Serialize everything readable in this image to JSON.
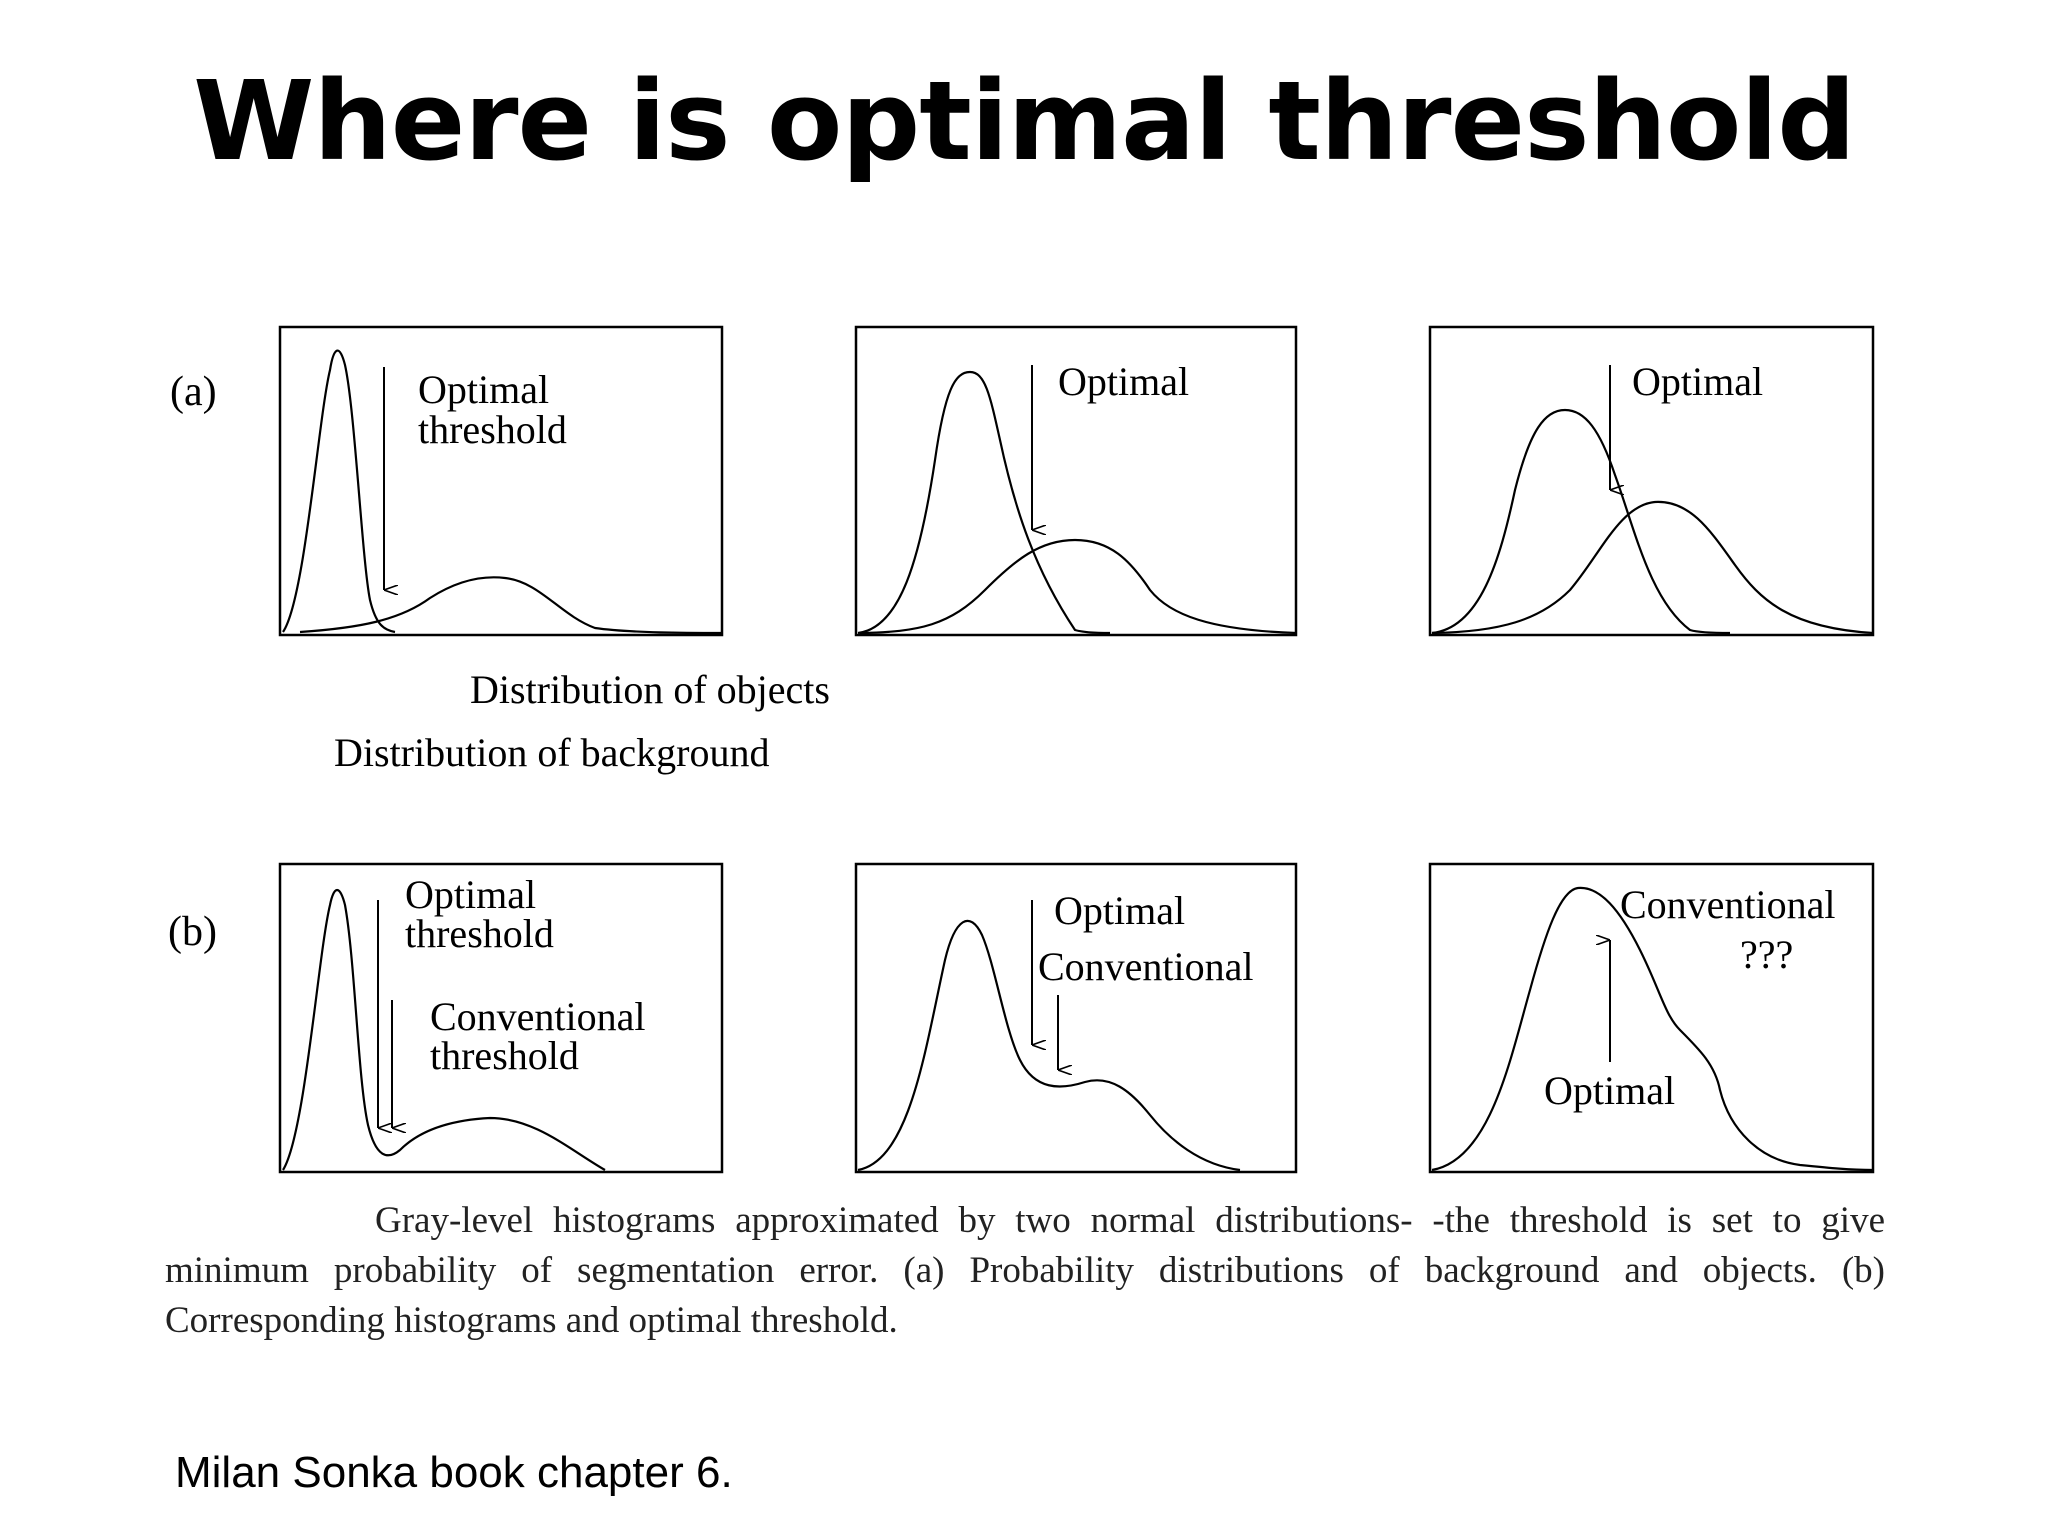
{
  "title": "Where is optimal threshold",
  "row_a": {
    "label": "(a)",
    "panel1": {
      "arrow_label_line1": "Optimal",
      "arrow_label_line2": "threshold"
    },
    "panel2": {
      "arrow_label": "Optimal"
    },
    "panel3": {
      "arrow_label": "Optimal"
    },
    "legend_objects": "Distribution of objects",
    "legend_background": "Distribution of background"
  },
  "row_b": {
    "label": "(b)",
    "panel1": {
      "optimal_line1": "Optimal",
      "optimal_line2": "threshold",
      "conventional_line1": "Conventional",
      "conventional_line2": "threshold"
    },
    "panel2": {
      "optimal_label": "Optimal",
      "conventional_label": "Conventional"
    },
    "panel3": {
      "conventional_label": "Conventional",
      "question_label": "???",
      "optimal_label": "Optimal"
    }
  },
  "caption": "Gray-level histograms approximated by two normal distributions- -the threshold is set to give minimum probability of segmentation error. (a) Probability distributions of background and objects. (b) Corresponding histograms and optimal threshold.",
  "source": "Milan Sonka book chapter 6."
}
